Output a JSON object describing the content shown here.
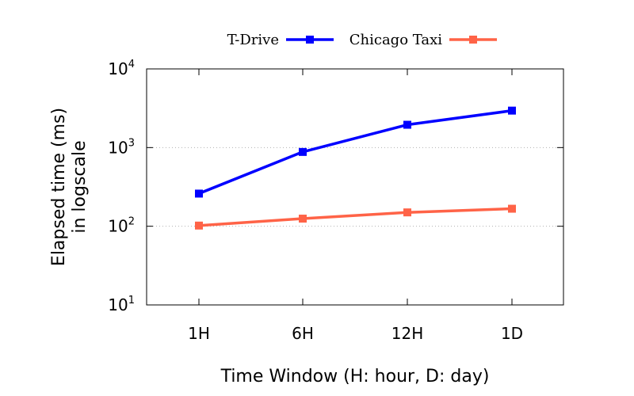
{
  "chart_data": {
    "type": "line",
    "categories": [
      "1H",
      "6H",
      "12H",
      "1D"
    ],
    "series": [
      {
        "name": "T-Drive",
        "color": "#0000ff",
        "marker": "square",
        "values": [
          260,
          880,
          1950,
          2950
        ]
      },
      {
        "name": "Chicago Taxi",
        "color": "#ff6347",
        "marker": "square",
        "values": [
          102,
          125,
          150,
          167
        ]
      }
    ],
    "xlabel": "Time Window (H: hour, D: day)",
    "ylabel": [
      "Elapsed time (ms)",
      "in logscale"
    ],
    "y_scale": "log",
    "ylim": [
      10,
      10000
    ],
    "y_ticks": [
      {
        "value": 10,
        "base": "10",
        "exp": "1"
      },
      {
        "value": 100,
        "base": "10",
        "exp": "2"
      },
      {
        "value": 1000,
        "base": "10",
        "exp": "3"
      },
      {
        "value": 10000,
        "base": "10",
        "exp": "4"
      }
    ],
    "grid": "horizontal dotted",
    "legend_position": "top"
  }
}
